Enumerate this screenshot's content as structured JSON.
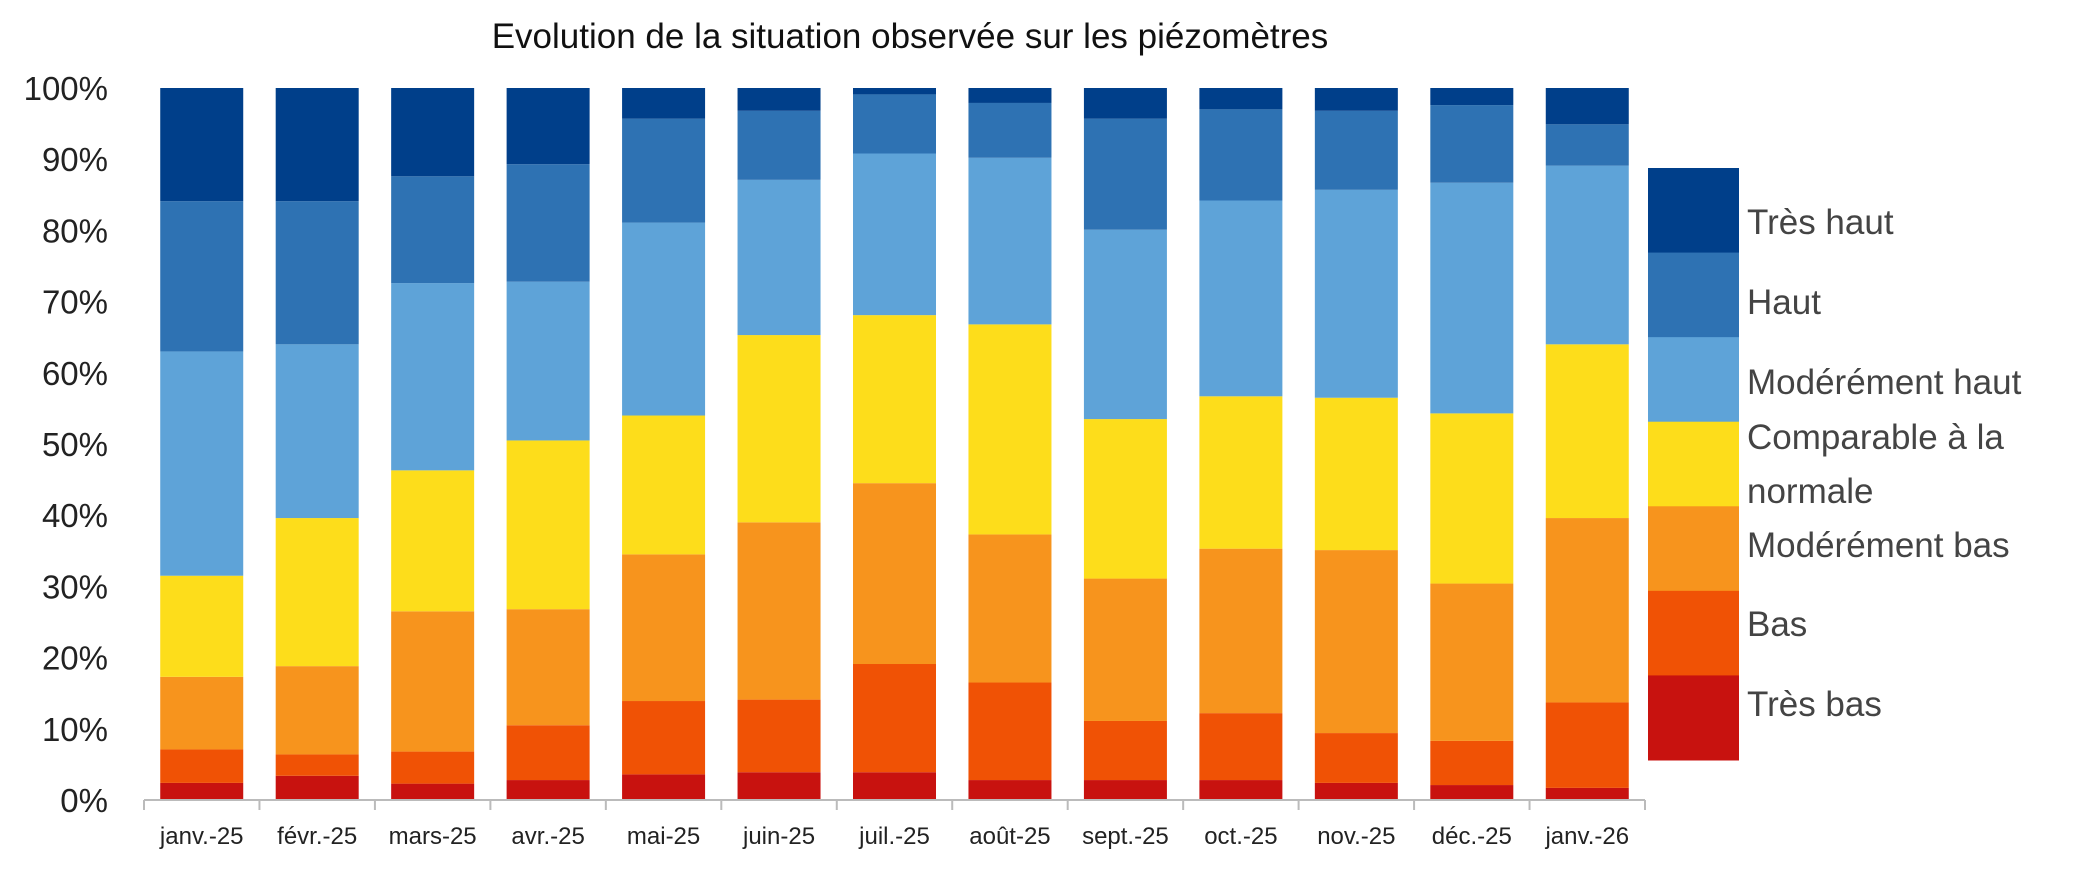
{
  "chart_data": {
    "type": "bar",
    "stacked": "percent",
    "title": "Evolution de la situation observée sur les  piézomètres",
    "xlabel": "",
    "ylabel": "",
    "ylim": [
      0,
      100
    ],
    "y_ticks": [
      "0%",
      "10%",
      "20%",
      "30%",
      "40%",
      "50%",
      "60%",
      "70%",
      "80%",
      "90%",
      "100%"
    ],
    "grid": false,
    "legend_placement": "right",
    "categories": [
      "janv.-25",
      "févr.-25",
      "mars-25",
      "avr.-25",
      "mai-25",
      "juin-25",
      "juil.-25",
      "août-25",
      "sept.-25",
      "oct.-25",
      "nov.-25",
      "déc.-25",
      "janv.-26"
    ],
    "series": [
      {
        "name": "Très bas",
        "color": "#C8120F",
        "values": [
          2.4,
          3.4,
          2.3,
          2.8,
          3.6,
          3.9,
          3.9,
          2.8,
          2.8,
          2.8,
          2.4,
          2.1,
          1.7
        ]
      },
      {
        "name": "Bas",
        "color": "#F05205",
        "values": [
          4.7,
          3.0,
          4.5,
          7.7,
          10.3,
          10.2,
          15.2,
          13.7,
          8.3,
          9.4,
          7.0,
          6.2,
          12.0
        ]
      },
      {
        "name": "Modérément bas",
        "color": "#F7941D",
        "values": [
          10.2,
          12.4,
          19.7,
          16.3,
          20.6,
          24.9,
          25.4,
          20.8,
          20.0,
          23.1,
          25.7,
          22.1,
          25.9
        ]
      },
      {
        "name": "Comparable à la normale",
        "color": "#FDDD1B",
        "values": [
          14.2,
          20.8,
          19.8,
          23.7,
          19.5,
          26.3,
          23.6,
          29.5,
          22.4,
          21.4,
          21.4,
          23.9,
          24.4
        ]
      },
      {
        "name": "Modérément haut",
        "color": "#5EA3D8",
        "values": [
          31.5,
          24.4,
          26.3,
          22.3,
          27.1,
          21.8,
          22.7,
          23.4,
          26.6,
          27.5,
          29.2,
          32.4,
          25.1
        ]
      },
      {
        "name": "Haut",
        "color": "#2E72B3",
        "values": [
          21.1,
          20.1,
          15.0,
          16.5,
          14.6,
          9.7,
          8.3,
          7.7,
          15.6,
          12.8,
          11.1,
          10.9,
          5.8
        ]
      },
      {
        "name": "Très haut",
        "color": "#003F8A",
        "values": [
          15.9,
          15.9,
          12.4,
          10.7,
          4.3,
          3.2,
          0.9,
          2.1,
          4.3,
          3.0,
          3.2,
          2.4,
          5.1
        ]
      }
    ],
    "legend_labels": {
      "tres_haut": "Très haut",
      "haut": "Haut",
      "mod_haut": "Modérément haut",
      "comparable_1": "Comparable à la",
      "comparable_2": "normale",
      "mod_bas": "Modérément bas",
      "bas": "Bas",
      "tres_bas": "Très bas"
    }
  }
}
